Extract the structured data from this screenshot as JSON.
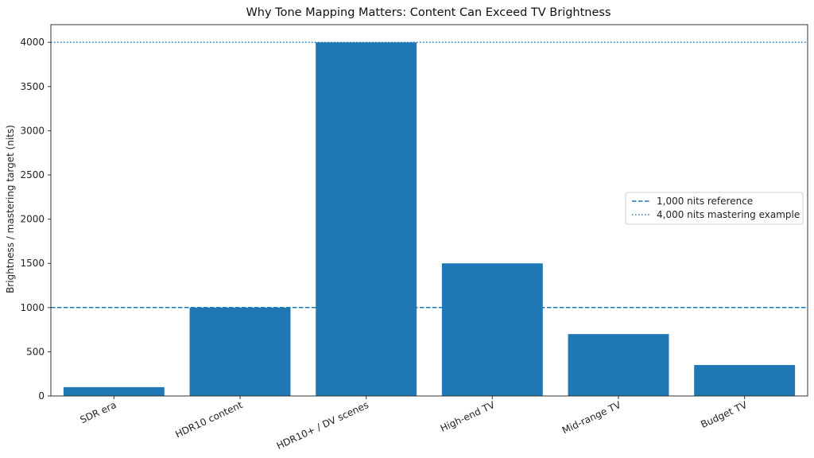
{
  "chart_data": {
    "type": "bar",
    "title": "Why Tone Mapping Matters: Content Can Exceed TV Brightness",
    "xlabel": "",
    "ylabel": "Brightness / mastering target (nits)",
    "categories": [
      "SDR era",
      "HDR10 content",
      "HDR10+ / DV scenes",
      "High-end TV",
      "Mid-range TV",
      "Budget TV"
    ],
    "values": [
      100,
      1000,
      4000,
      1500,
      700,
      350
    ],
    "ylim": [
      0,
      4200
    ],
    "yticks": [
      0,
      500,
      1000,
      1500,
      2000,
      2500,
      3000,
      3500,
      4000
    ],
    "grid": false,
    "bar_color": "#1f77b4",
    "reference_lines": [
      {
        "label": "1,000 nits reference",
        "value": 1000,
        "style": "dashed",
        "color": "#1f77b4"
      },
      {
        "label": "4,000 nits mastering example",
        "value": 4000,
        "style": "dotted",
        "color": "#1f77b4"
      }
    ],
    "legend_position": "center-right"
  }
}
